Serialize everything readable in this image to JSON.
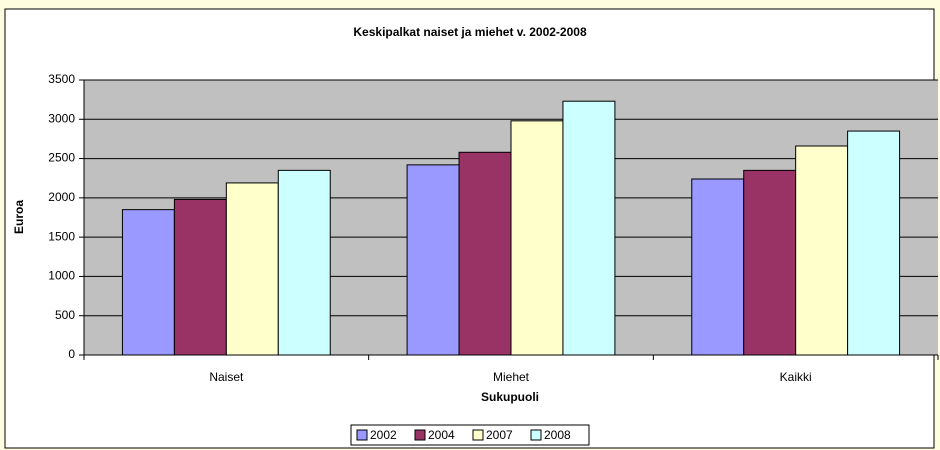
{
  "chart_data": {
    "type": "bar",
    "title": "Keskipalkat naiset ja miehet v. 2002-2008",
    "x_label": "Sukupuoli",
    "y_label": "Euroa",
    "categories": [
      "Naiset",
      "Miehet",
      "Kaikki"
    ],
    "series": [
      {
        "name": "2002",
        "color": "#9999ff",
        "values": [
          1850,
          2420,
          2240
        ]
      },
      {
        "name": "2004",
        "color": "#993366",
        "values": [
          1980,
          2580,
          2350
        ]
      },
      {
        "name": "2007",
        "color": "#ffffcc",
        "values": [
          2190,
          2980,
          2660
        ]
      },
      {
        "name": "2008",
        "color": "#ccffff",
        "values": [
          2350,
          3230,
          2850
        ]
      }
    ],
    "ylim": [
      0,
      3500
    ],
    "yticks": [
      0,
      500,
      1000,
      1500,
      2000,
      2500,
      3000,
      3500
    ],
    "grid": true
  }
}
